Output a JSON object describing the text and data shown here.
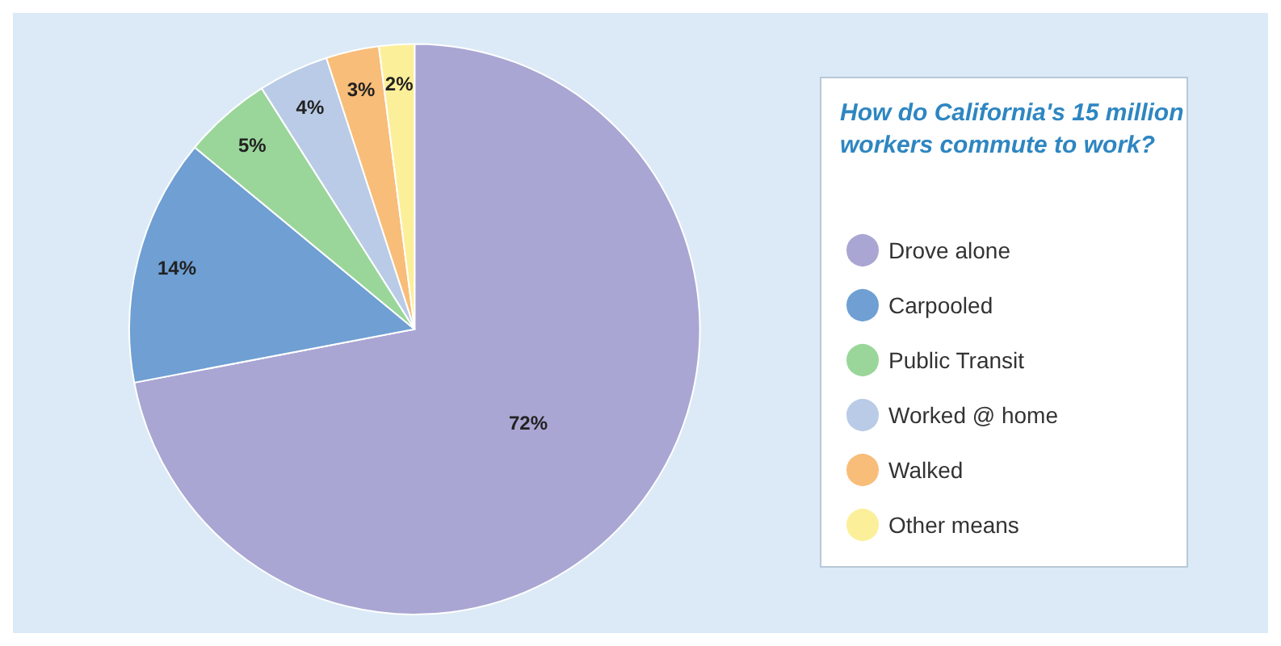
{
  "chart_data": {
    "type": "pie",
    "legend_title": "How do California's 15 million workers commute to work?",
    "categories": [
      "Drove alone",
      "Carpooled",
      "Public Transit",
      "Worked @ home",
      "Walked",
      "Other means"
    ],
    "values": [
      72,
      14,
      5,
      4,
      3,
      2
    ],
    "value_labels": [
      "72%",
      "14%",
      "5%",
      "4%",
      "3%",
      "2%"
    ],
    "colors": [
      "#a9a6d3",
      "#6f9fd3",
      "#9ad69a",
      "#b9cbe6",
      "#f8bd78",
      "#fcef9a"
    ],
    "legend": "right"
  }
}
